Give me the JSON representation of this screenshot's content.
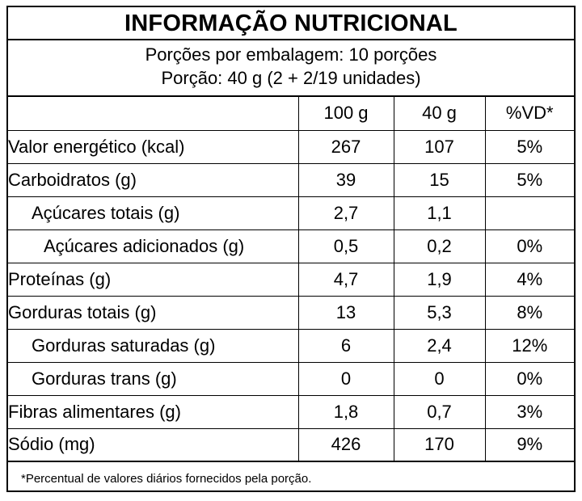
{
  "title": "INFORMAÇÃO NUTRICIONAL",
  "serving": {
    "per_package": "Porções por embalagem: 10 porções",
    "portion": "Porção: 40 g (2 + 2/19 unidades)"
  },
  "columns": [
    "",
    "100 g",
    "40 g",
    "%VD*"
  ],
  "rows": [
    {
      "name": "Valor energético (kcal)",
      "per100": "267",
      "per40": "107",
      "vd": "5%"
    },
    {
      "name": "Carboidratos (g)",
      "per100": "39",
      "per40": "15",
      "vd": "5%"
    },
    {
      "name": "Açúcares totais (g)",
      "per100": "2,7",
      "per40": "1,1",
      "vd": ""
    },
    {
      "name": "Açúcares adicionados (g)",
      "per100": "0,5",
      "per40": "0,2",
      "vd": "0%"
    },
    {
      "name": "Proteínas (g)",
      "per100": "4,7",
      "per40": "1,9",
      "vd": "4%"
    },
    {
      "name": "Gorduras totais (g)",
      "per100": "13",
      "per40": "5,3",
      "vd": "8%"
    },
    {
      "name": "Gorduras saturadas (g)",
      "per100": "6",
      "per40": "2,4",
      "vd": "12%"
    },
    {
      "name": "Gorduras trans (g)",
      "per100": "0",
      "per40": "0",
      "vd": "0%"
    },
    {
      "name": "Fibras alimentares (g)",
      "per100": "1,8",
      "per40": "0,7",
      "vd": "3%"
    },
    {
      "name": "Sódio (mg)",
      "per100": "426",
      "per40": "170",
      "vd": "9%"
    }
  ],
  "footnote": "*Percentual de valores diários fornecidos pela porção."
}
